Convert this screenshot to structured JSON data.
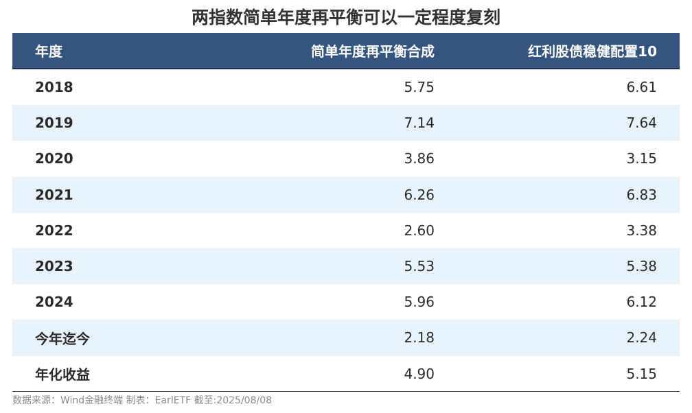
{
  "title": "两指数简单年度再平衡可以一定程度复刻",
  "table": {
    "headers": [
      "年度",
      "简单年度再平衡合成",
      "红利股债稳健配置10"
    ],
    "rows": [
      {
        "label": "2018",
        "a": "5.75",
        "b": "6.61"
      },
      {
        "label": "2019",
        "a": "7.14",
        "b": "7.64"
      },
      {
        "label": "2020",
        "a": "3.86",
        "b": "3.15"
      },
      {
        "label": "2021",
        "a": "6.26",
        "b": "6.83"
      },
      {
        "label": "2022",
        "a": "2.60",
        "b": "3.38"
      },
      {
        "label": "2023",
        "a": "5.53",
        "b": "5.38"
      },
      {
        "label": "2024",
        "a": "5.96",
        "b": "6.12"
      },
      {
        "label": "今年迄今",
        "a": "2.18",
        "b": "2.24"
      },
      {
        "label": "年化收益",
        "a": "4.90",
        "b": "5.15"
      }
    ]
  },
  "source": "数据来源：Wind金融终端 制表：EarlETF 截至:2025/08/08",
  "colors": {
    "header_bg": "#355581",
    "alt_row_bg": "#e8f2fb"
  }
}
